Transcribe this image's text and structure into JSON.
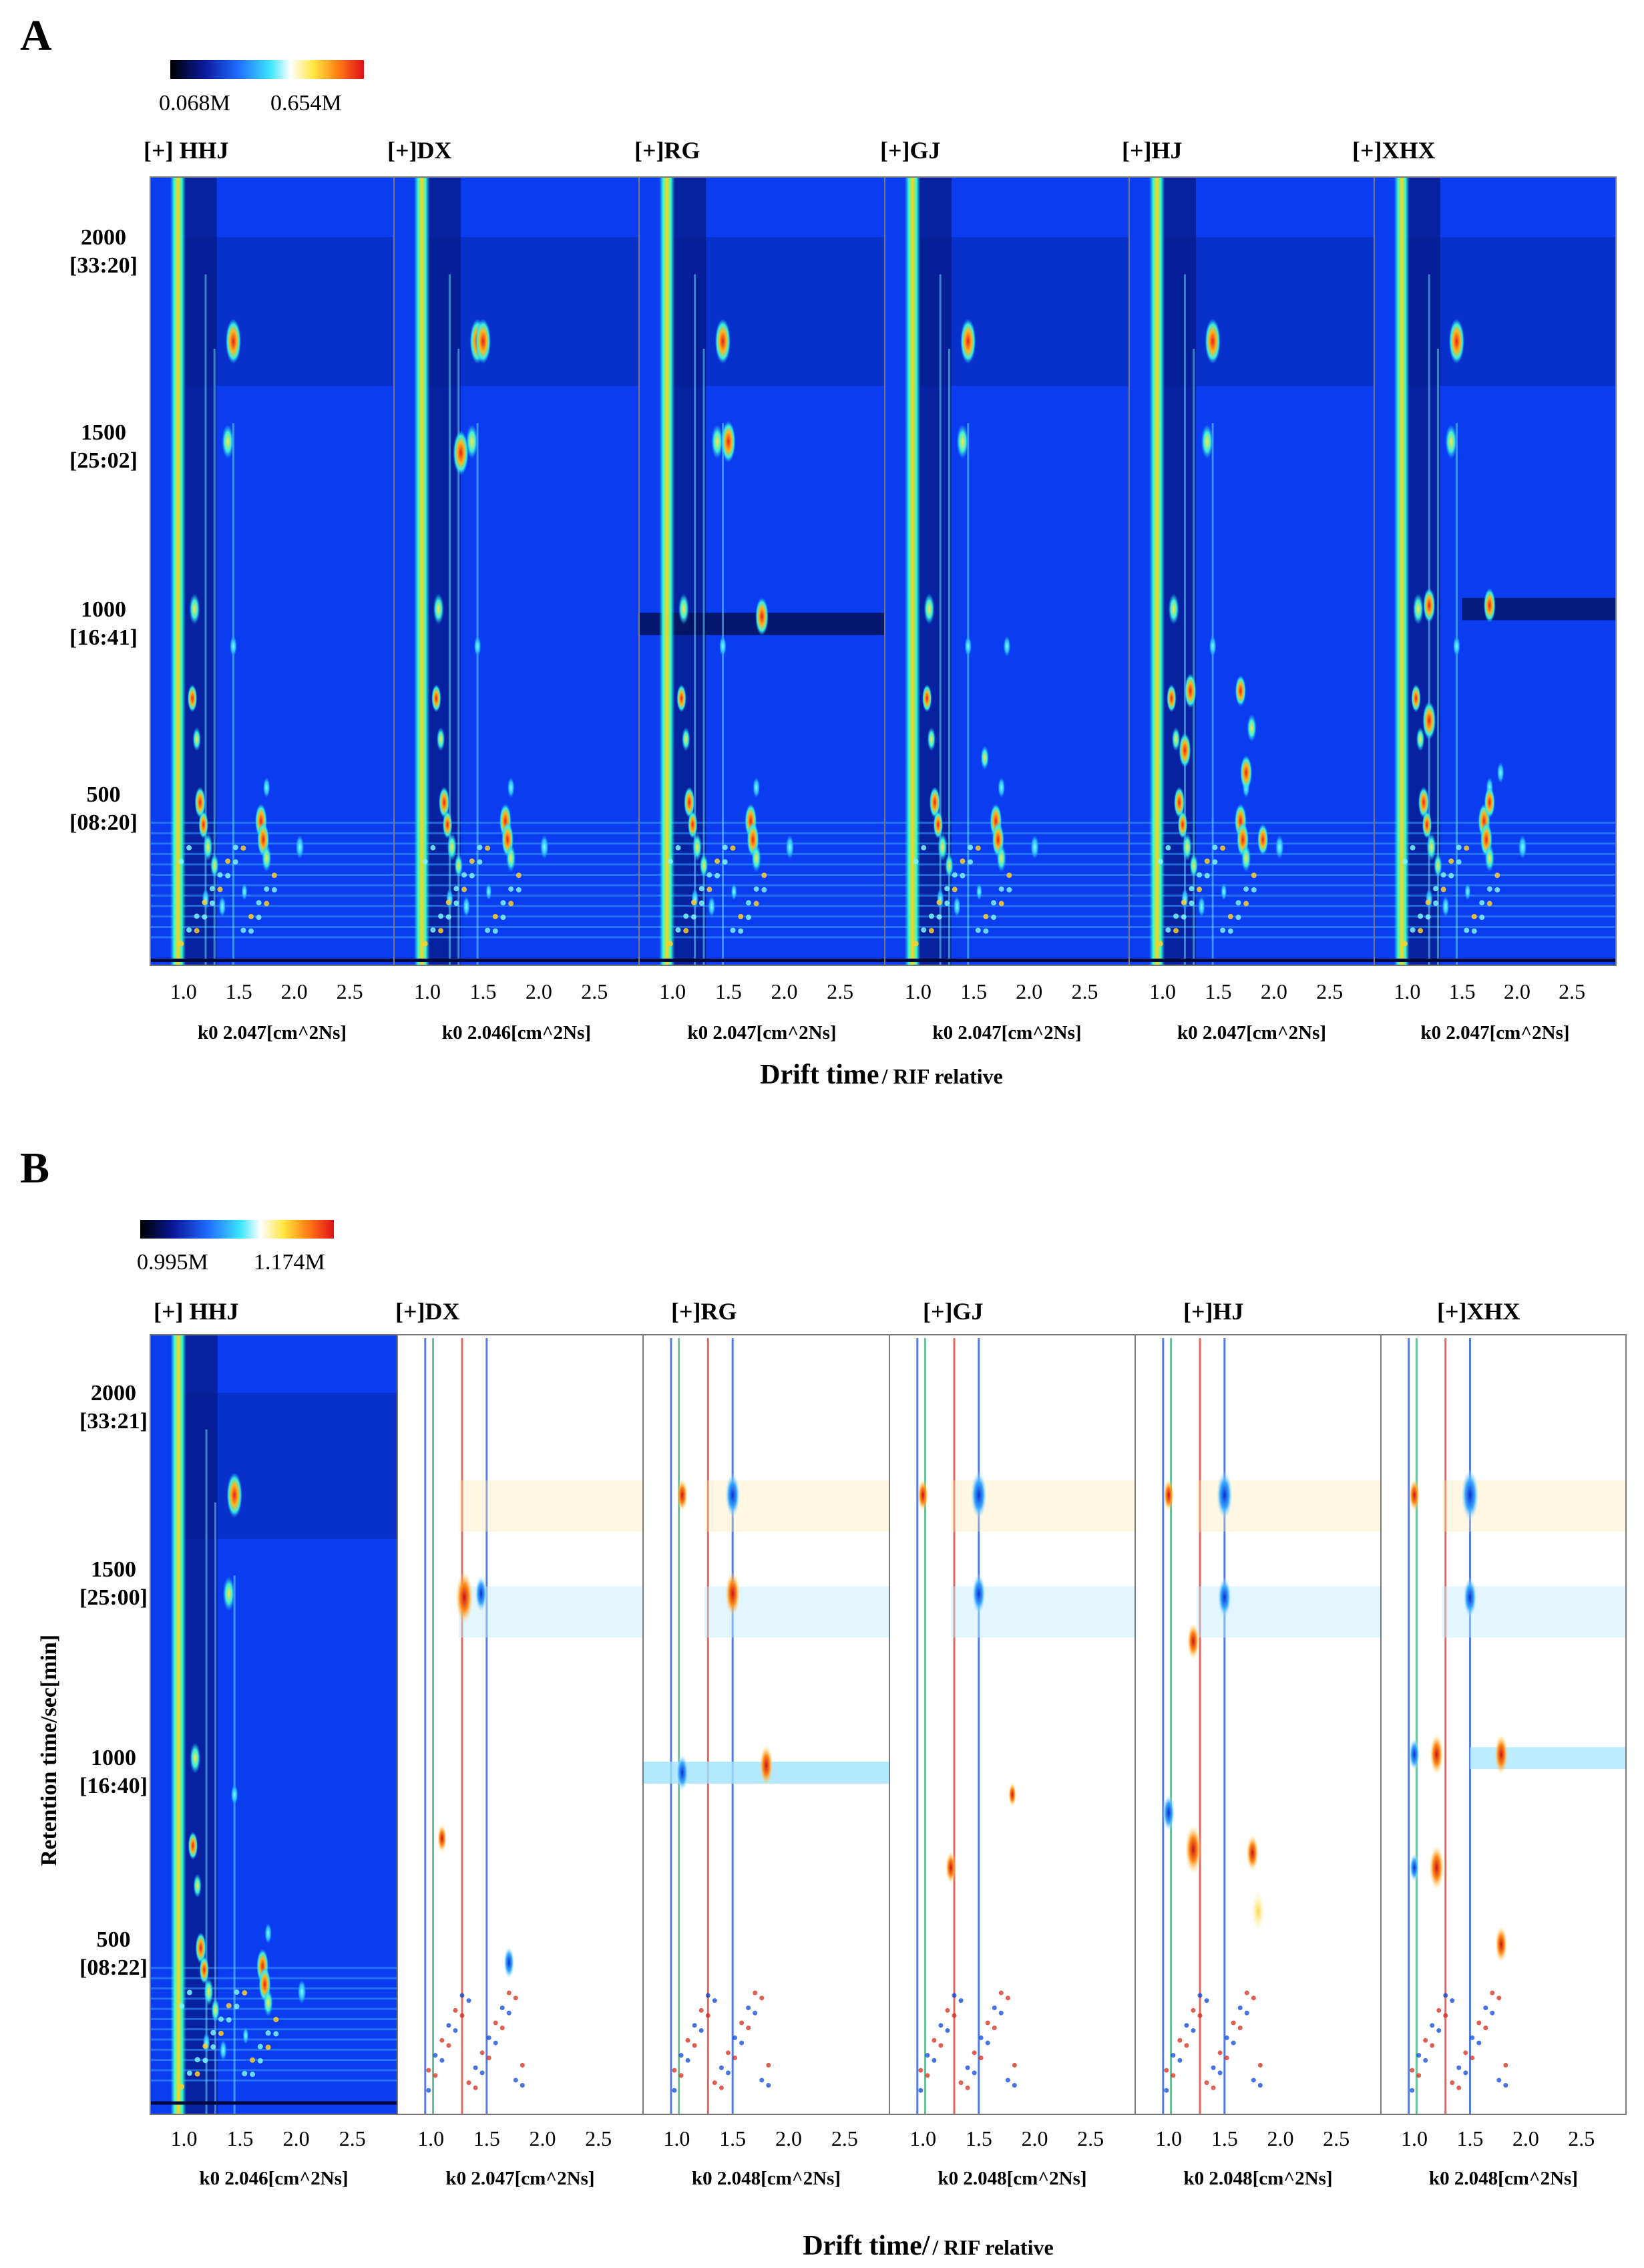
{
  "chart_data": [
    {
      "type": "heatmap",
      "panel_label": "A",
      "colorbar": {
        "min_label": "0.068M",
        "max_label": "0.654M"
      },
      "y_ticks": [
        {
          "value": 2000,
          "label": "2000",
          "time": "[33:20]"
        },
        {
          "value": 1500,
          "label": "1500",
          "time": "[25:02]"
        },
        {
          "value": 1000,
          "label": "1000",
          "time": "[16:41]"
        },
        {
          "value": 500,
          "label": "500",
          "time": "[08:20]"
        }
      ],
      "ylabel": "",
      "ylim": [
        50,
        2200
      ],
      "xlim": [
        0.7,
        2.9
      ],
      "x_ticks": [
        "1.0",
        "1.5",
        "2.0",
        "2.5"
      ],
      "x_tick_values": [
        1.0,
        1.5,
        2.0,
        2.5
      ],
      "xlabel_main": "Drift time",
      "xlabel_suffix": "/ RIF relative",
      "samples": [
        {
          "name": "[+] HHJ",
          "k0": "k0 2.047[cm^2Ns]",
          "mode": "raw"
        },
        {
          "name": "[+]DX",
          "k0": "k0 2.046[cm^2Ns]",
          "mode": "raw"
        },
        {
          "name": "[+]RG",
          "k0": "k0 2.047[cm^2Ns]",
          "mode": "raw"
        },
        {
          "name": "[+]GJ",
          "k0": "k0 2.047[cm^2Ns]",
          "mode": "raw"
        },
        {
          "name": "[+]HJ",
          "k0": "k0 2.047[cm^2Ns]",
          "mode": "raw"
        },
        {
          "name": "[+]XHX",
          "k0": "k0 2.047[cm^2Ns]",
          "mode": "raw"
        }
      ]
    },
    {
      "type": "heatmap",
      "panel_label": "B",
      "colorbar": {
        "min_label": "0.995M",
        "max_label": "1.174M"
      },
      "y_ticks": [
        {
          "value": 2000,
          "label": "2000",
          "time": "[33:21]"
        },
        {
          "value": 1500,
          "label": "1500",
          "time": "[25:00]"
        },
        {
          "value": 1000,
          "label": "1000",
          "time": "[16:40]"
        },
        {
          "value": 500,
          "label": "500",
          "time": "[08:22]"
        }
      ],
      "ylabel": "Retention time/sec[min]",
      "ylim": [
        50,
        2200
      ],
      "xlim": [
        0.7,
        2.9
      ],
      "x_ticks": [
        "1.0",
        "1.5",
        "2.0",
        "2.5"
      ],
      "x_tick_values": [
        1.0,
        1.5,
        2.0,
        2.5
      ],
      "xlabel_main": "Drift time/",
      "xlabel_suffix": "/ RIF relative",
      "samples": [
        {
          "name": "[+] HHJ",
          "k0": "k0 2.046[cm^2Ns]",
          "mode": "raw"
        },
        {
          "name": "[+]DX",
          "k0": "k0 2.047[cm^2Ns]",
          "mode": "diff"
        },
        {
          "name": "[+]RG",
          "k0": "k0 2.048[cm^2Ns]",
          "mode": "diff"
        },
        {
          "name": "[+]GJ",
          "k0": "k0 2.048[cm^2Ns]",
          "mode": "diff"
        },
        {
          "name": "[+]HJ",
          "k0": "k0 2.048[cm^2Ns]",
          "mode": "diff"
        },
        {
          "name": "[+]XHX",
          "k0": "k0 2.048[cm^2Ns]",
          "mode": "diff"
        }
      ]
    }
  ],
  "colors": {
    "background_raw": "#0a3cf0",
    "dark_band": "#061a86",
    "reactant_peak": "#ffd21a",
    "peak_hot": "#e8201a",
    "diff_up": "#d42a1a",
    "diff_down": "#0a45d8",
    "diff_background": "#ffffff"
  }
}
